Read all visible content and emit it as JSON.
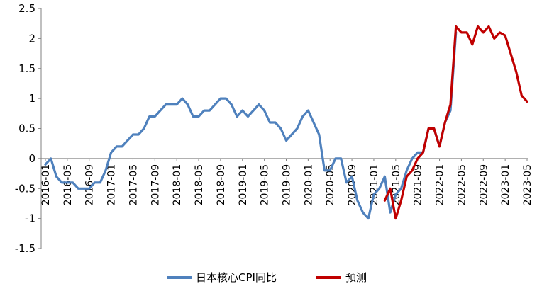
{
  "chart_data": {
    "type": "line",
    "ylim": [
      -1.5,
      2.5
    ],
    "yticks": [
      "2.5",
      "2",
      "1.5",
      "1",
      "0.5",
      "0",
      "-0.5",
      "-1",
      "-1.5"
    ],
    "ytick_values": [
      2.5,
      2,
      1.5,
      1,
      0.5,
      0,
      -0.5,
      -1,
      -1.5
    ],
    "xtick_labels": [
      "2016-01",
      "2016-05",
      "2016-09",
      "2017-01",
      "2017-05",
      "2017-09",
      "2018-01",
      "2018-05",
      "2018-09",
      "2019-01",
      "2019-05",
      "2019-09",
      "2020-01",
      "2020-05",
      "2020-09",
      "2021-01",
      "2021-05",
      "2021-09",
      "2022-01",
      "2022-05",
      "2022-09",
      "2023-01",
      "2023-05"
    ],
    "x_start": "2016-01",
    "x_end": "2023-05",
    "legend_position": "bottom",
    "colors": {
      "actual": "#4f81bd",
      "forecast": "#c00000"
    },
    "series": [
      {
        "name": "日本核心CPI同比",
        "x": [
          "2016-01",
          "2016-02",
          "2016-03",
          "2016-04",
          "2016-05",
          "2016-06",
          "2016-07",
          "2016-08",
          "2016-09",
          "2016-10",
          "2016-11",
          "2016-12",
          "2017-01",
          "2017-02",
          "2017-03",
          "2017-04",
          "2017-05",
          "2017-06",
          "2017-07",
          "2017-08",
          "2017-09",
          "2017-10",
          "2017-11",
          "2017-12",
          "2018-01",
          "2018-02",
          "2018-03",
          "2018-04",
          "2018-05",
          "2018-06",
          "2018-07",
          "2018-08",
          "2018-09",
          "2018-10",
          "2018-11",
          "2018-12",
          "2019-01",
          "2019-02",
          "2019-03",
          "2019-04",
          "2019-05",
          "2019-06",
          "2019-07",
          "2019-08",
          "2019-09",
          "2019-10",
          "2019-11",
          "2019-12",
          "2020-01",
          "2020-02",
          "2020-03",
          "2020-04",
          "2020-05",
          "2020-06",
          "2020-07",
          "2020-08",
          "2020-09",
          "2020-10",
          "2020-11",
          "2020-12",
          "2021-01",
          "2021-02",
          "2021-03",
          "2021-04",
          "2021-05",
          "2021-06",
          "2021-07",
          "2021-08",
          "2021-09",
          "2021-10",
          "2021-11",
          "2021-12",
          "2022-01",
          "2022-02",
          "2022-03",
          "2022-04"
        ],
        "values": [
          -0.1,
          0.0,
          -0.3,
          -0.4,
          -0.4,
          -0.4,
          -0.5,
          -0.5,
          -0.5,
          -0.4,
          -0.4,
          -0.2,
          0.1,
          0.2,
          0.2,
          0.3,
          0.4,
          0.4,
          0.5,
          0.7,
          0.7,
          0.8,
          0.9,
          0.9,
          0.9,
          1.0,
          0.9,
          0.7,
          0.7,
          0.8,
          0.8,
          0.9,
          1.0,
          1.0,
          0.9,
          0.7,
          0.8,
          0.7,
          0.8,
          0.9,
          0.8,
          0.6,
          0.6,
          0.5,
          0.3,
          0.4,
          0.5,
          0.7,
          0.8,
          0.6,
          0.4,
          -0.2,
          -0.2,
          0.0,
          0.0,
          -0.4,
          -0.3,
          -0.7,
          -0.9,
          -1.0,
          -0.6,
          -0.5,
          -0.3,
          -0.9,
          -0.6,
          -0.5,
          -0.2,
          0.0,
          0.1,
          0.1,
          0.5,
          0.5,
          0.2,
          0.6,
          0.8,
          2.1
        ]
      },
      {
        "name": "预测",
        "x": [
          "2021-03",
          "2021-04",
          "2021-05",
          "2021-06",
          "2021-07",
          "2021-08",
          "2021-09",
          "2021-10",
          "2021-11",
          "2021-12",
          "2022-01",
          "2022-02",
          "2022-03",
          "2022-04",
          "2022-05",
          "2022-06",
          "2022-07",
          "2022-08",
          "2022-09",
          "2022-10",
          "2022-11",
          "2022-12",
          "2023-01",
          "2023-02",
          "2023-03",
          "2023-04",
          "2023-05"
        ],
        "values": [
          -0.7,
          -0.5,
          -1.0,
          -0.7,
          -0.3,
          -0.2,
          0.0,
          0.1,
          0.5,
          0.5,
          0.2,
          0.6,
          0.9,
          2.2,
          2.1,
          2.1,
          1.9,
          2.2,
          2.1,
          2.2,
          2.0,
          2.1,
          2.05,
          1.75,
          1.45,
          1.05,
          0.95
        ]
      }
    ]
  }
}
